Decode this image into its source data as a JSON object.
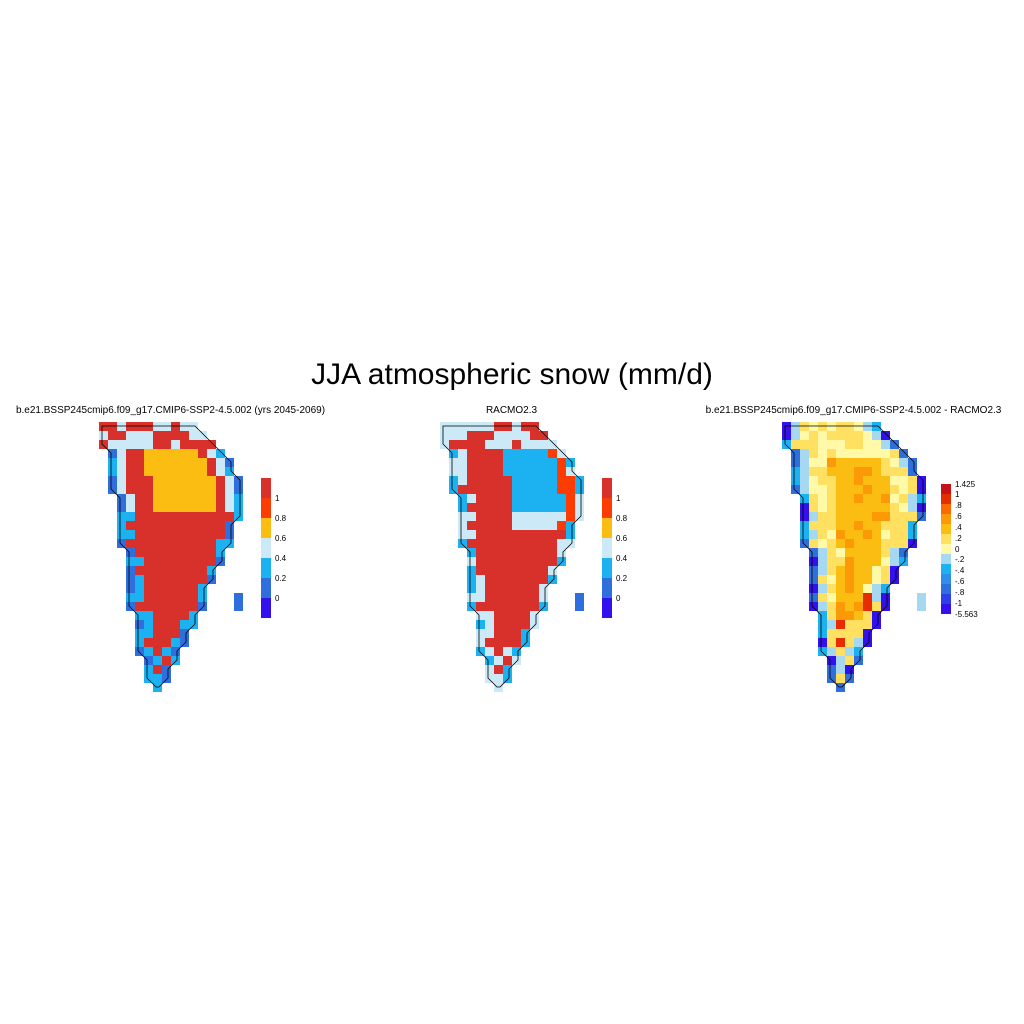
{
  "title": "JJA atmospheric snow (mm/d)",
  "panels": [
    {
      "id": "model",
      "title": "b.e21.BSSP245cmip6.f09_g17.CMIP6-SSP2-4.5.002 (yrs 2045-2069)",
      "levels": [
        "0",
        "0.2",
        "0.4",
        "0.6",
        "0.8",
        "1"
      ],
      "colors": [
        "#3310ee",
        "#2f6fdd",
        "#1cb1f0",
        "#cbe9f6",
        "#fbbd12",
        "#fd3c04",
        "#d8302a"
      ]
    },
    {
      "id": "racmo",
      "title": "RACMO2.3",
      "levels": [
        "0",
        "0.2",
        "0.4",
        "0.6",
        "0.8",
        "1"
      ],
      "colors": [
        "#3310ee",
        "#2f6fdd",
        "#1cb1f0",
        "#cbe9f6",
        "#fbbd12",
        "#fd3c04",
        "#d8302a"
      ]
    },
    {
      "id": "difference",
      "title": "b.e21.BSSP245cmip6.f09_g17.CMIP6-SSP2-4.5.002 - RACMO2.3",
      "levels": [
        "-5.563",
        "-1",
        "-.8",
        "-.6",
        "-.4",
        "-.2",
        "0",
        ".2",
        ".4",
        ".6",
        ".8",
        "1",
        "1.425"
      ],
      "colors": [
        "#3310ee",
        "#2e3ee8",
        "#2f6fdd",
        "#2f8fe6",
        "#1cb1f0",
        "#a7d8f2",
        "#fff9a8",
        "#ffe060",
        "#fbbd12",
        "#fb9a06",
        "#f96a00",
        "#e72c00",
        "#c8121a"
      ]
    }
  ]
}
